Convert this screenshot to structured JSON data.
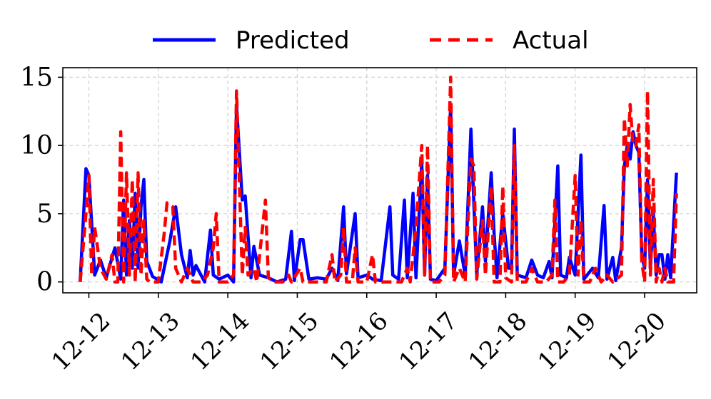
{
  "chart_data": {
    "type": "line",
    "title": "",
    "xlabel": "",
    "ylabel": "",
    "ylim": [
      -0.8,
      15.7
    ],
    "xlim": [
      "2023-12-11T15:00",
      "2023-12-20T18:00"
    ],
    "y_ticks": [
      0,
      5,
      10,
      15
    ],
    "x_ticks": [
      "2023-12-12",
      "2023-12-13",
      "2023-12-14",
      "2023-12-15",
      "2023-12-16",
      "2023-12-17",
      "2023-12-18",
      "2023-12-19",
      "2023-12-20"
    ],
    "x_tick_labels": [
      "12-12",
      "12-13",
      "12-14",
      "12-15",
      "12-16",
      "12-17",
      "12-18",
      "12-19",
      "12-20"
    ],
    "grid": true,
    "legend_position": "top-center",
    "series": [
      {
        "name": "Predicted",
        "color": "#0000ff",
        "style": "solid",
        "points": [
          [
            "2023-12-11T21:00",
            0
          ],
          [
            "2023-12-11T23:00",
            8.3
          ],
          [
            "2023-12-12T00:00",
            7.8
          ],
          [
            "2023-12-12T02:00",
            0.5
          ],
          [
            "2023-12-12T04:00",
            1.6
          ],
          [
            "2023-12-12T06:00",
            0.3
          ],
          [
            "2023-12-12T09:00",
            2.5
          ],
          [
            "2023-12-12T11:00",
            0.2
          ],
          [
            "2023-12-12T12:00",
            6.0
          ],
          [
            "2023-12-12T13:00",
            0.5
          ],
          [
            "2023-12-12T14:00",
            4.5
          ],
          [
            "2023-12-12T15:00",
            1.0
          ],
          [
            "2023-12-12T16:00",
            6.5
          ],
          [
            "2023-12-12T17:00",
            1.0
          ],
          [
            "2023-12-12T18:00",
            5.5
          ],
          [
            "2023-12-12T19:00",
            7.5
          ],
          [
            "2023-12-12T20:00",
            1.5
          ],
          [
            "2023-12-12T22:00",
            0.4
          ],
          [
            "2023-12-13T01:00",
            0
          ],
          [
            "2023-12-13T04:00",
            3.0
          ],
          [
            "2023-12-13T06:00",
            5.5
          ],
          [
            "2023-12-13T08:00",
            2.0
          ],
          [
            "2023-12-13T10:00",
            0.3
          ],
          [
            "2023-12-13T11:00",
            2.3
          ],
          [
            "2023-12-13T12:00",
            0.5
          ],
          [
            "2023-12-13T13:00",
            1.2
          ],
          [
            "2023-12-13T16:00",
            0
          ],
          [
            "2023-12-13T18:00",
            3.8
          ],
          [
            "2023-12-13T19:00",
            0.5
          ],
          [
            "2023-12-13T21:00",
            0.2
          ],
          [
            "2023-12-14T00:00",
            0.5
          ],
          [
            "2023-12-14T02:00",
            0
          ],
          [
            "2023-12-14T03:00",
            13.0
          ],
          [
            "2023-12-14T05:00",
            6.0
          ],
          [
            "2023-12-14T06:00",
            6.3
          ],
          [
            "2023-12-14T08:00",
            0.3
          ],
          [
            "2023-12-14T09:00",
            2.6
          ],
          [
            "2023-12-14T11:00",
            0.5
          ],
          [
            "2023-12-14T14:00",
            0.3
          ],
          [
            "2023-12-14T17:00",
            0
          ],
          [
            "2023-12-14T20:00",
            0.2
          ],
          [
            "2023-12-14T22:00",
            3.7
          ],
          [
            "2023-12-14T23:00",
            0.1
          ],
          [
            "2023-12-15T01:00",
            3.1
          ],
          [
            "2023-12-15T02:00",
            3.1
          ],
          [
            "2023-12-15T04:00",
            0.2
          ],
          [
            "2023-12-15T07:00",
            0.3
          ],
          [
            "2023-12-15T10:00",
            0.2
          ],
          [
            "2023-12-15T12:00",
            1.0
          ],
          [
            "2023-12-15T14:00",
            0.1
          ],
          [
            "2023-12-15T16:00",
            5.5
          ],
          [
            "2023-12-15T17:00",
            0.6
          ],
          [
            "2023-12-15T20:00",
            5.0
          ],
          [
            "2023-12-15T21:00",
            0.3
          ],
          [
            "2023-12-16T00:00",
            0.5
          ],
          [
            "2023-12-16T02:00",
            0.2
          ],
          [
            "2023-12-16T05:00",
            0.1
          ],
          [
            "2023-12-16T08:00",
            5.5
          ],
          [
            "2023-12-16T09:00",
            0.5
          ],
          [
            "2023-12-16T11:00",
            0.2
          ],
          [
            "2023-12-16T13:00",
            6.0
          ],
          [
            "2023-12-16T14:00",
            0.3
          ],
          [
            "2023-12-16T16:00",
            6.5
          ],
          [
            "2023-12-16T17:00",
            0.3
          ],
          [
            "2023-12-16T19:00",
            8.8
          ],
          [
            "2023-12-16T20:00",
            0.5
          ],
          [
            "2023-12-16T21:00",
            7.8
          ],
          [
            "2023-12-16T22:00",
            0.2
          ],
          [
            "2023-12-17T00:00",
            0.1
          ],
          [
            "2023-12-17T03:00",
            1.0
          ],
          [
            "2023-12-17T05:00",
            13.0
          ],
          [
            "2023-12-17T06:00",
            0.5
          ],
          [
            "2023-12-17T08:00",
            3.0
          ],
          [
            "2023-12-17T10:00",
            0.5
          ],
          [
            "2023-12-17T12:00",
            11.2
          ],
          [
            "2023-12-17T14:00",
            0.5
          ],
          [
            "2023-12-17T16:00",
            5.5
          ],
          [
            "2023-12-17T17:00",
            1.5
          ],
          [
            "2023-12-17T19:00",
            8.0
          ],
          [
            "2023-12-17T20:00",
            3.5
          ],
          [
            "2023-12-17T21:00",
            0.3
          ],
          [
            "2023-12-17T23:00",
            5.0
          ],
          [
            "2023-12-18T01:00",
            1.0
          ],
          [
            "2023-12-18T02:00",
            1.0
          ],
          [
            "2023-12-18T03:00",
            11.2
          ],
          [
            "2023-12-18T04:00",
            0.5
          ],
          [
            "2023-12-18T07:00",
            0.3
          ],
          [
            "2023-12-18T09:00",
            1.6
          ],
          [
            "2023-12-18T11:00",
            0.5
          ],
          [
            "2023-12-18T13:00",
            0.3
          ],
          [
            "2023-12-18T15:00",
            1.5
          ],
          [
            "2023-12-18T16:00",
            0.3
          ],
          [
            "2023-12-18T18:00",
            8.5
          ],
          [
            "2023-12-18T19:00",
            0.5
          ],
          [
            "2023-12-18T21:00",
            0.3
          ],
          [
            "2023-12-18T22:00",
            1.8
          ],
          [
            "2023-12-19T00:00",
            0.5
          ],
          [
            "2023-12-19T02:00",
            9.3
          ],
          [
            "2023-12-19T03:00",
            0.2
          ],
          [
            "2023-12-19T06:00",
            1.0
          ],
          [
            "2023-12-19T08:00",
            0.3
          ],
          [
            "2023-12-19T10:00",
            5.6
          ],
          [
            "2023-12-19T11:00",
            0.2
          ],
          [
            "2023-12-19T13:00",
            1.8
          ],
          [
            "2023-12-19T14:00",
            0.1
          ],
          [
            "2023-12-19T16:00",
            2.5
          ],
          [
            "2023-12-19T17:00",
            8.5
          ],
          [
            "2023-12-19T18:00",
            10.0
          ],
          [
            "2023-12-19T19:00",
            9.0
          ],
          [
            "2023-12-19T20:00",
            11.0
          ],
          [
            "2023-12-19T21:00",
            10.0
          ],
          [
            "2023-12-19T22:00",
            9.5
          ],
          [
            "2023-12-19T23:00",
            2.0
          ],
          [
            "2023-12-20T00:00",
            1.0
          ],
          [
            "2023-12-20T01:00",
            7.5
          ],
          [
            "2023-12-20T02:00",
            1.0
          ],
          [
            "2023-12-20T03:00",
            5.0
          ],
          [
            "2023-12-20T04:00",
            0.5
          ],
          [
            "2023-12-20T05:00",
            2.0
          ],
          [
            "2023-12-20T06:00",
            2.0
          ],
          [
            "2023-12-20T07:00",
            0.2
          ],
          [
            "2023-12-20T08:00",
            2.0
          ],
          [
            "2023-12-20T09:00",
            0.3
          ],
          [
            "2023-12-20T11:00",
            8.0
          ]
        ]
      },
      {
        "name": "Actual",
        "color": "#ff0000",
        "style": "dashed",
        "points": [
          [
            "2023-12-11T21:00",
            0
          ],
          [
            "2023-12-11T23:00",
            5.0
          ],
          [
            "2023-12-12T00:00",
            7.8
          ],
          [
            "2023-12-12T01:00",
            0.5
          ],
          [
            "2023-12-12T02:00",
            4.0
          ],
          [
            "2023-12-12T04:00",
            1.0
          ],
          [
            "2023-12-12T06:00",
            0.2
          ],
          [
            "2023-12-12T08:00",
            2.0
          ],
          [
            "2023-12-12T09:00",
            0
          ],
          [
            "2023-12-12T10:00",
            0
          ],
          [
            "2023-12-12T11:00",
            11.0
          ],
          [
            "2023-12-12T12:00",
            0
          ],
          [
            "2023-12-12T13:00",
            8.0
          ],
          [
            "2023-12-12T14:00",
            0.5
          ],
          [
            "2023-12-12T15:00",
            7.5
          ],
          [
            "2023-12-12T16:00",
            0
          ],
          [
            "2023-12-12T17:00",
            8.0
          ],
          [
            "2023-12-12T18:00",
            0.5
          ],
          [
            "2023-12-12T19:00",
            4.5
          ],
          [
            "2023-12-12T20:00",
            0.2
          ],
          [
            "2023-12-12T21:00",
            0
          ],
          [
            "2023-12-13T00:00",
            0
          ],
          [
            "2023-12-13T02:00",
            3.5
          ],
          [
            "2023-12-13T03:00",
            5.8
          ],
          [
            "2023-12-13T05:00",
            5.5
          ],
          [
            "2023-12-13T06:00",
            1.0
          ],
          [
            "2023-12-13T08:00",
            0
          ],
          [
            "2023-12-13T10:00",
            1.0
          ],
          [
            "2023-12-13T12:00",
            0
          ],
          [
            "2023-12-13T15:00",
            0
          ],
          [
            "2023-12-13T17:00",
            0.5
          ],
          [
            "2023-12-13T19:00",
            2.5
          ],
          [
            "2023-12-13T20:00",
            5.0
          ],
          [
            "2023-12-13T21:00",
            0
          ],
          [
            "2023-12-14T00:00",
            0
          ],
          [
            "2023-12-14T02:00",
            0.5
          ],
          [
            "2023-12-14T03:00",
            14.0
          ],
          [
            "2023-12-14T05:00",
            0.5
          ],
          [
            "2023-12-14T06:00",
            4.0
          ],
          [
            "2023-12-14T07:00",
            0.5
          ],
          [
            "2023-12-14T09:00",
            1.0
          ],
          [
            "2023-12-14T10:00",
            0
          ],
          [
            "2023-12-14T12:00",
            4.0
          ],
          [
            "2023-12-14T13:00",
            6.0
          ],
          [
            "2023-12-14T14:00",
            0.3
          ],
          [
            "2023-12-14T16:00",
            0
          ],
          [
            "2023-12-14T19:00",
            0
          ],
          [
            "2023-12-14T21:00",
            0.5
          ],
          [
            "2023-12-14T22:00",
            0
          ],
          [
            "2023-12-15T01:00",
            1.0
          ],
          [
            "2023-12-15T02:00",
            0
          ],
          [
            "2023-12-15T05:00",
            0
          ],
          [
            "2023-12-15T08:00",
            0
          ],
          [
            "2023-12-15T10:00",
            0
          ],
          [
            "2023-12-15T12:00",
            2.0
          ],
          [
            "2023-12-15T13:00",
            0
          ],
          [
            "2023-12-15T15:00",
            0.5
          ],
          [
            "2023-12-15T16:00",
            4.0
          ],
          [
            "2023-12-15T17:00",
            0
          ],
          [
            "2023-12-15T19:00",
            0
          ],
          [
            "2023-12-15T20:00",
            2.5
          ],
          [
            "2023-12-15T21:00",
            0
          ],
          [
            "2023-12-16T00:00",
            0
          ],
          [
            "2023-12-16T02:00",
            2.0
          ],
          [
            "2023-12-16T03:00",
            0
          ],
          [
            "2023-12-16T06:00",
            0
          ],
          [
            "2023-12-16T09:00",
            0
          ],
          [
            "2023-12-16T12:00",
            0
          ],
          [
            "2023-12-16T14:00",
            1.0
          ],
          [
            "2023-12-16T15:00",
            0
          ],
          [
            "2023-12-16T17:00",
            4.0
          ],
          [
            "2023-12-16T18:00",
            7.0
          ],
          [
            "2023-12-16T19:00",
            10.0
          ],
          [
            "2023-12-16T20:00",
            0.5
          ],
          [
            "2023-12-16T21:00",
            10.0
          ],
          [
            "2023-12-16T22:00",
            0
          ],
          [
            "2023-12-17T01:00",
            0
          ],
          [
            "2023-12-17T03:00",
            0.5
          ],
          [
            "2023-12-17T05:00",
            15.0
          ],
          [
            "2023-12-17T06:00",
            0
          ],
          [
            "2023-12-17T08:00",
            1.0
          ],
          [
            "2023-12-17T10:00",
            0
          ],
          [
            "2023-12-17T12:00",
            9.0
          ],
          [
            "2023-12-17T13:00",
            8.5
          ],
          [
            "2023-12-17T14:00",
            0.2
          ],
          [
            "2023-12-17T16:00",
            4.5
          ],
          [
            "2023-12-17T17:00",
            0.5
          ],
          [
            "2023-12-17T19:00",
            7.0
          ],
          [
            "2023-12-17T20:00",
            0
          ],
          [
            "2023-12-17T22:00",
            0
          ],
          [
            "2023-12-17T23:00",
            7.0
          ],
          [
            "2023-12-18T00:00",
            0.3
          ],
          [
            "2023-12-18T02:00",
            0
          ],
          [
            "2023-12-18T03:00",
            10.0
          ],
          [
            "2023-12-18T04:00",
            0
          ],
          [
            "2023-12-18T07:00",
            0
          ],
          [
            "2023-12-18T09:00",
            1.0
          ],
          [
            "2023-12-18T11:00",
            0
          ],
          [
            "2023-12-18T14:00",
            0
          ],
          [
            "2023-12-18T16:00",
            0.5
          ],
          [
            "2023-12-18T17:00",
            6.0
          ],
          [
            "2023-12-18T18:00",
            0
          ],
          [
            "2023-12-18T20:00",
            0
          ],
          [
            "2023-12-18T22:00",
            0.5
          ],
          [
            "2023-12-19T00:00",
            7.8
          ],
          [
            "2023-12-19T01:00",
            0.5
          ],
          [
            "2023-12-19T02:00",
            4.5
          ],
          [
            "2023-12-19T03:00",
            0
          ],
          [
            "2023-12-19T05:00",
            0
          ],
          [
            "2023-12-19T07:00",
            1.0
          ],
          [
            "2023-12-19T09:00",
            0
          ],
          [
            "2023-12-19T11:00",
            0.5
          ],
          [
            "2023-12-19T13:00",
            0
          ],
          [
            "2023-12-19T16:00",
            0.5
          ],
          [
            "2023-12-19T17:00",
            12.0
          ],
          [
            "2023-12-19T18:00",
            8.5
          ],
          [
            "2023-12-19T19:00",
            13.0
          ],
          [
            "2023-12-19T20:00",
            10.0
          ],
          [
            "2023-12-19T21:00",
            10.0
          ],
          [
            "2023-12-19T22:00",
            11.5
          ],
          [
            "2023-12-19T23:00",
            1.5
          ],
          [
            "2023-12-20T00:00",
            0
          ],
          [
            "2023-12-20T01:00",
            14.0
          ],
          [
            "2023-12-20T02:00",
            0.5
          ],
          [
            "2023-12-20T03:00",
            7.5
          ],
          [
            "2023-12-20T04:00",
            0
          ],
          [
            "2023-12-20T05:00",
            1.0
          ],
          [
            "2023-12-20T06:00",
            0
          ],
          [
            "2023-12-20T07:00",
            1.0
          ],
          [
            "2023-12-20T08:00",
            0
          ],
          [
            "2023-12-20T10:00",
            0
          ],
          [
            "2023-12-20T11:00",
            6.5
          ]
        ]
      }
    ]
  }
}
